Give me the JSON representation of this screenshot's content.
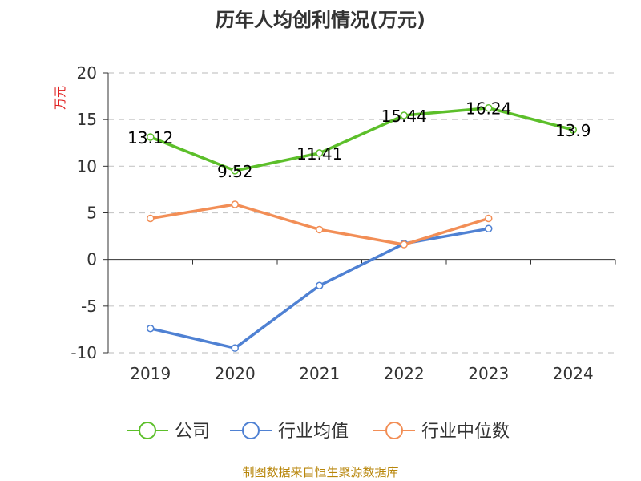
{
  "chart_data": {
    "type": "line",
    "title": "历年人均创利情况(万元)",
    "ylabel": "万元",
    "xlabel": "",
    "categories": [
      "2019",
      "2020",
      "2021",
      "2022",
      "2023",
      "2024"
    ],
    "ylim": [
      -10,
      20
    ],
    "yticks": [
      -10,
      -5,
      0,
      5,
      10,
      15,
      20
    ],
    "grid": true,
    "legend_position": "bottom",
    "series": [
      {
        "name": "公司",
        "color": "#5cbf2a",
        "values": [
          13.12,
          9.52,
          11.41,
          15.44,
          16.24,
          13.9
        ],
        "labels": [
          "13.12",
          "9.52",
          "11.41",
          "15.44",
          "16.24",
          "13.9"
        ]
      },
      {
        "name": "行业均值",
        "color": "#4f81d3",
        "values": [
          -7.4,
          -9.5,
          -2.8,
          1.7,
          3.3,
          null
        ]
      },
      {
        "name": "行业中位数",
        "color": "#f28e56",
        "values": [
          4.4,
          5.9,
          3.2,
          1.6,
          4.4,
          null
        ]
      }
    ]
  },
  "source": "制图数据来自恒生聚源数据库"
}
